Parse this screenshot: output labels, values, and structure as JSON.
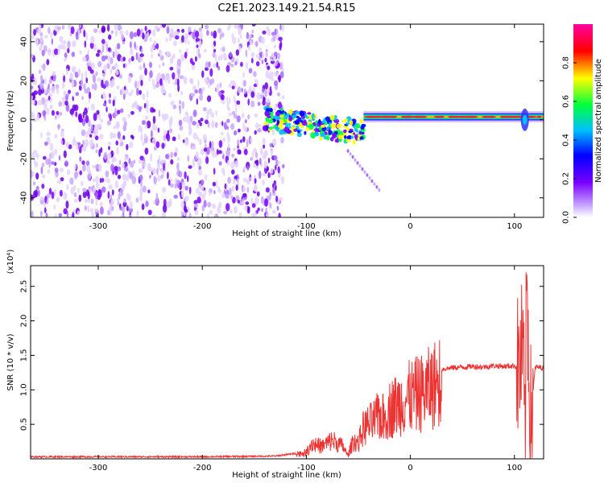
{
  "title": "C2E1.2023.149.21.54.R15",
  "chart_data": [
    {
      "type": "heatmap",
      "title": "C2E1.2023.149.21.54.R15",
      "xlabel": "Height of straight line (km)",
      "ylabel": "Frequency (Hz)",
      "xlim": [
        -365,
        128
      ],
      "ylim": [
        -50,
        49
      ],
      "x_ticks": [
        "-300",
        "-200",
        "-100",
        "0",
        "100"
      ],
      "y_ticks": [
        "40",
        "20",
        "0",
        "-20",
        "-40"
      ],
      "colorbar": {
        "label": "Normalized spectral amplitude",
        "range": [
          0,
          1
        ],
        "ticks": [
          "0.0",
          "0.2",
          "0.4",
          "0.6",
          "0.8"
        ],
        "colormap": [
          "#ffffff",
          "#7a00ff",
          "#0000ff",
          "#00c0ff",
          "#00ff40",
          "#ffff00",
          "#ff0000",
          "#ff00a0"
        ]
      },
      "regions": [
        {
          "x_range": [
            -365,
            -122
          ],
          "description_value": "noise",
          "amplitude": 0.05
        },
        {
          "x_range": [
            -140,
            -45
          ],
          "frequency_center": 0,
          "amplitude": 0.6
        },
        {
          "x_range": [
            -45,
            128
          ],
          "frequency_center": 1.5,
          "amplitude": 1.0
        }
      ],
      "tail_feature": {
        "x": [
          -60,
          -30
        ],
        "y": [
          -16,
          -36
        ]
      }
    },
    {
      "type": "line",
      "xlabel": "Height of straight line (km)",
      "ylabel": "SNR (10 * v/v)",
      "y_scale_label": "(x10⁴)",
      "xlim": [
        -365,
        128
      ],
      "ylim": [
        0,
        2.8
      ],
      "x_ticks": [
        "-300",
        "-200",
        "-100",
        "0",
        "100"
      ],
      "y_ticks": [
        "0.5",
        "1.0",
        "1.5",
        "2.0",
        "2.5"
      ],
      "color": "#ee3333",
      "series": [
        {
          "x": [
            -365,
            -300,
            -200,
            -130,
            -100,
            -95,
            -85,
            -75,
            -65,
            -60,
            -55,
            -50,
            -45,
            -40,
            -35,
            -30,
            -25,
            -20,
            -15,
            -10,
            -5,
            0,
            10,
            20,
            30,
            40,
            50,
            60,
            70,
            80,
            90,
            100,
            105,
            108,
            110,
            112,
            115,
            120,
            128
          ],
          "y": [
            0.03,
            0.03,
            0.03,
            0.04,
            0.1,
            0.25,
            0.2,
            0.3,
            0.2,
            0.05,
            0.3,
            0.25,
            0.5,
            0.55,
            0.6,
            0.7,
            0.65,
            0.8,
            0.85,
            0.9,
            0.95,
            1.0,
            1.05,
            1.15,
            1.3,
            1.32,
            1.33,
            1.34,
            1.33,
            1.35,
            1.34,
            1.35,
            1.3,
            1.6,
            0.3,
            2.7,
            0.5,
            1.33,
            1.32
          ]
        }
      ]
    }
  ]
}
